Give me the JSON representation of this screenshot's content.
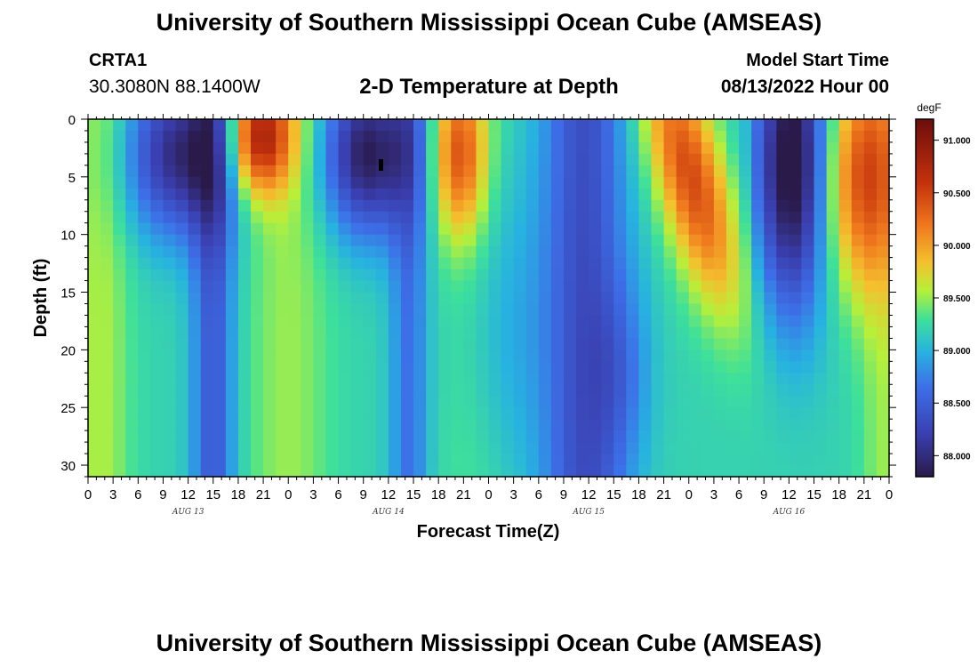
{
  "header": {
    "title": "University of Southern Mississippi Ocean Cube (AMSEAS)",
    "station": "CRTA1",
    "coords": "30.3080N  88.1400W",
    "subtitle": "2-D Temperature at Depth",
    "model_start_label": "Model Start Time",
    "model_start_value": "08/13/2022 Hour 00"
  },
  "footer": {
    "title": "University of Southern Mississippi Ocean Cube (AMSEAS)"
  },
  "chart_data": {
    "type": "heatmap",
    "title": "2-D Temperature at Depth",
    "xlabel": "Forecast Time(Z)",
    "ylabel": "Depth (ft)",
    "x_range_hours": [
      0,
      96
    ],
    "y_range_ft": [
      0,
      31
    ],
    "y_ticks": [
      0,
      5,
      10,
      15,
      20,
      25,
      30
    ],
    "x_tick_labels": [
      "0",
      "3",
      "6",
      "9",
      "12",
      "15",
      "18",
      "21",
      "0",
      "3",
      "6",
      "9",
      "12",
      "15",
      "18",
      "21",
      "0",
      "3",
      "6",
      "9",
      "12",
      "15",
      "18",
      "21",
      "0",
      "3",
      "6",
      "9",
      "12",
      "15",
      "18",
      "21",
      "0"
    ],
    "x_day_labels": [
      {
        "label": "AUG 13",
        "hour": 12
      },
      {
        "label": "AUG 14",
        "hour": 36
      },
      {
        "label": "AUG 15",
        "hour": 60
      },
      {
        "label": "AUG 16",
        "hour": 84
      }
    ],
    "colorbar": {
      "unit": "degF",
      "min": 87.8,
      "max": 91.2,
      "ticks": [
        "91.000",
        "90.500",
        "90.000",
        "89.500",
        "89.000",
        "88.500",
        "88.000"
      ],
      "tick_values": [
        91.0,
        90.5,
        90.0,
        89.5,
        89.0,
        88.5,
        88.0
      ]
    },
    "depth_levels_ft": [
      0,
      2,
      4,
      6,
      8,
      10,
      13,
      16,
      20,
      25,
      31
    ],
    "hours": [
      0,
      1.5,
      3,
      4.5,
      6,
      7.5,
      9,
      10.5,
      12,
      13.5,
      15,
      16.5,
      18,
      19.5,
      21,
      22.5,
      24,
      25.5,
      27,
      28.5,
      30,
      31.5,
      33,
      34.5,
      36,
      37.5,
      39,
      40.5,
      42,
      43.5,
      45,
      46.5,
      48,
      49.5,
      51,
      52.5,
      54,
      55.5,
      57,
      58.5,
      60,
      61.5,
      63,
      64.5,
      66,
      67.5,
      69,
      70.5,
      72,
      73.5,
      75,
      76.5,
      78,
      79.5,
      81,
      82.5,
      84,
      85.5,
      87,
      88.5,
      90,
      91.5,
      93,
      94.5,
      96
    ],
    "note": "Temperatures in degF; surface warm cores near hours 18-24, 40-48, 64-72, 88-96; cold cores near hours 6-15, 30-36, 52-63, 80-87."
  }
}
